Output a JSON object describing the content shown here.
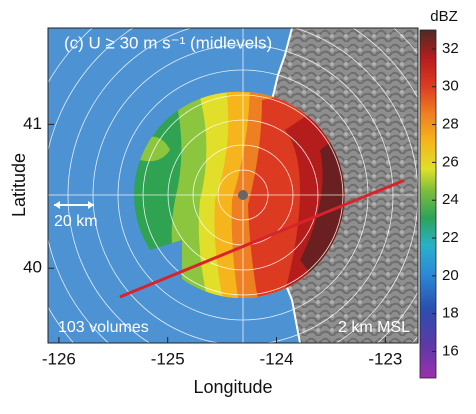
{
  "chart_data": {
    "type": "map",
    "title": "(c) U ≥ 30 m s⁻¹ (midlevels)",
    "xlabel": "Longitude",
    "ylabel": "Latitude",
    "xlim": [
      -126.1,
      -122.7
    ],
    "ylim": [
      39.48,
      41.67
    ],
    "xticks": [
      -126,
      -125,
      -124,
      -123
    ],
    "yticks": [
      40,
      41
    ],
    "scale_bar": "20 km",
    "annotations": [
      "103 volumes",
      "2 km MSL"
    ],
    "cross_section": {
      "color": "#d8232a",
      "x": [
        -125.44,
        -122.83
      ],
      "y": [
        39.8,
        40.61
      ]
    },
    "colorbar": {
      "label": "dBZ",
      "lim": [
        14.6,
        33
      ],
      "ticks": [
        16,
        18,
        20,
        22,
        24,
        26,
        28,
        30,
        32
      ]
    }
  }
}
